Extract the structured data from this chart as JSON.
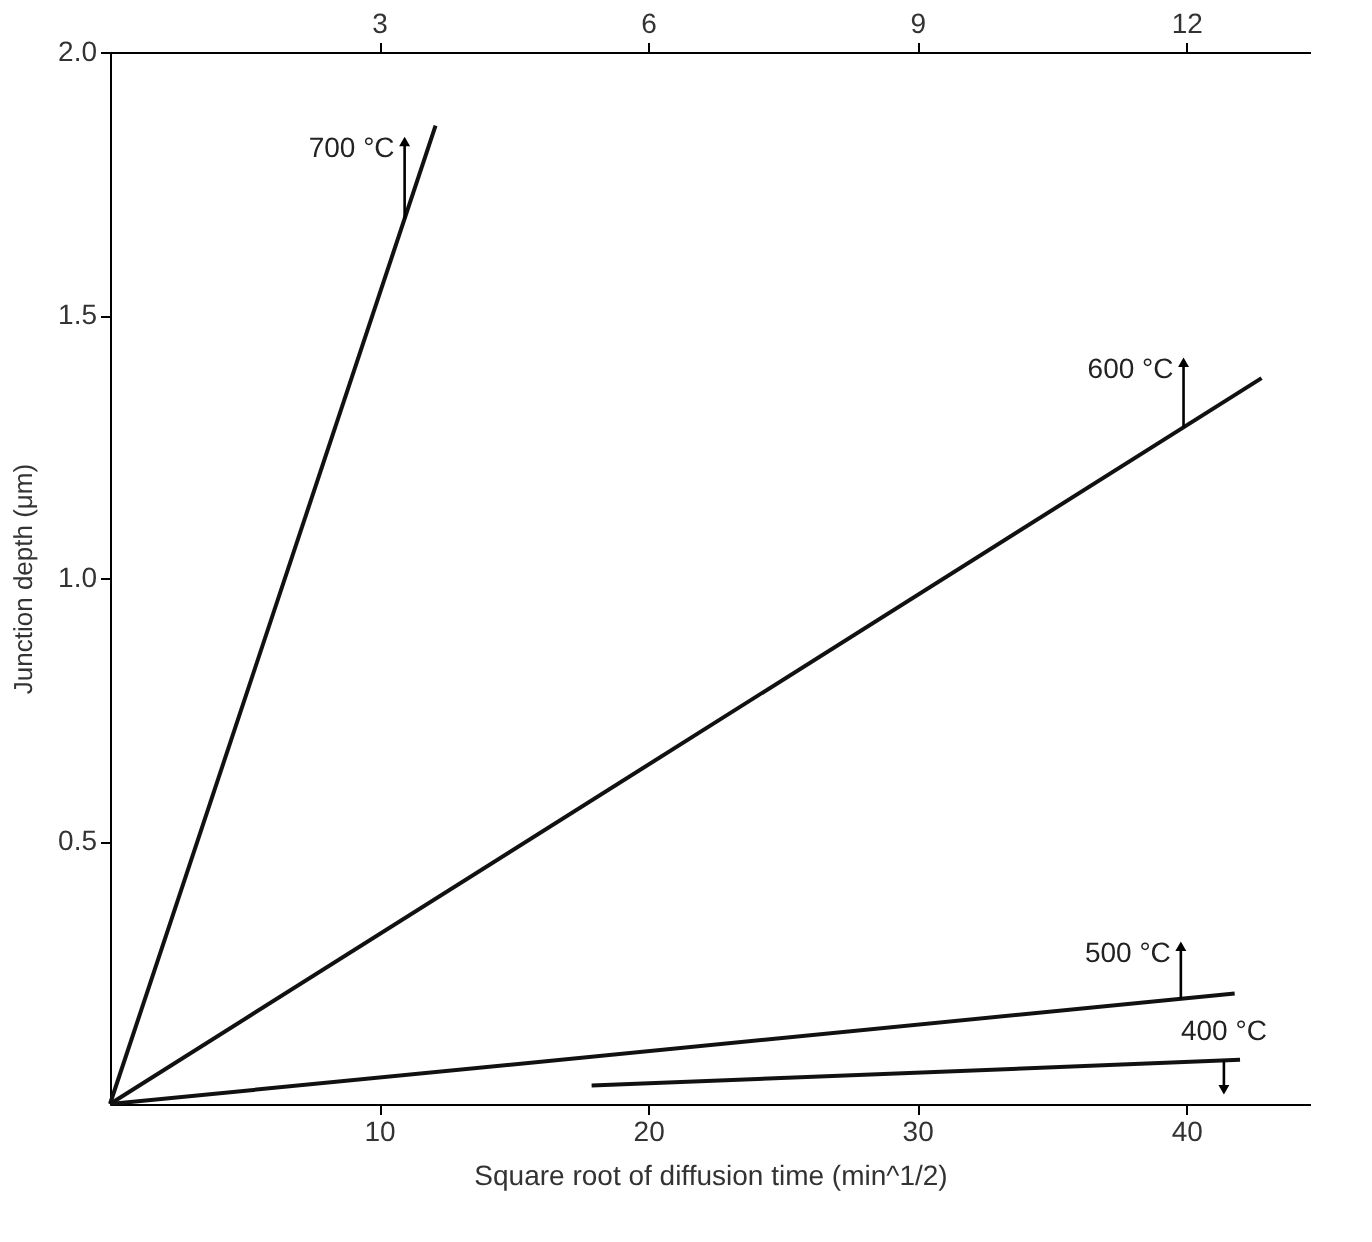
{
  "chart_data": {
    "type": "line",
    "xlabel": "Square root of diffusion time (min^1/2)",
    "ylabel": "Junction depth (μm)",
    "xlim": [
      0,
      44.6
    ],
    "xticks": [
      10,
      20,
      30,
      40
    ],
    "x2lim": [
      0,
      13.38
    ],
    "x2ticks": [
      3,
      6,
      9,
      12
    ],
    "ylim": [
      0,
      2.0
    ],
    "yticks": [
      0.5,
      {
        "value": 1.0,
        "label": "1.0"
      },
      1.5,
      {
        "value": 2.0,
        "label": "2.0"
      }
    ],
    "series": [
      {
        "color": "#111111",
        "x": [
          0,
          12.1
        ],
        "values": [
          0,
          1.86
        ]
      },
      {
        "color": "#111111",
        "x": [
          0,
          42.8
        ],
        "values": [
          0,
          1.38
        ]
      },
      {
        "color": "#111111",
        "x": [
          0,
          41.8
        ],
        "values": [
          0,
          0.21
        ]
      },
      {
        "color": "#111111",
        "x": [
          17.9,
          42.0
        ],
        "values": [
          0.035,
          0.084
        ]
      }
    ],
    "annotations": [
      {
        "text": "700 °C",
        "x": 10.95,
        "y": 1.83
      },
      {
        "text": "600 °C",
        "x": 39.9,
        "y": 1.41
      },
      {
        "text": "500 °C",
        "x": 39.8,
        "y": 0.3
      },
      {
        "text": "400 °C",
        "x": 41.4,
        "y": 0.027
      }
    ],
    "grid": false,
    "marker": "none",
    "line_style": "solid"
  }
}
